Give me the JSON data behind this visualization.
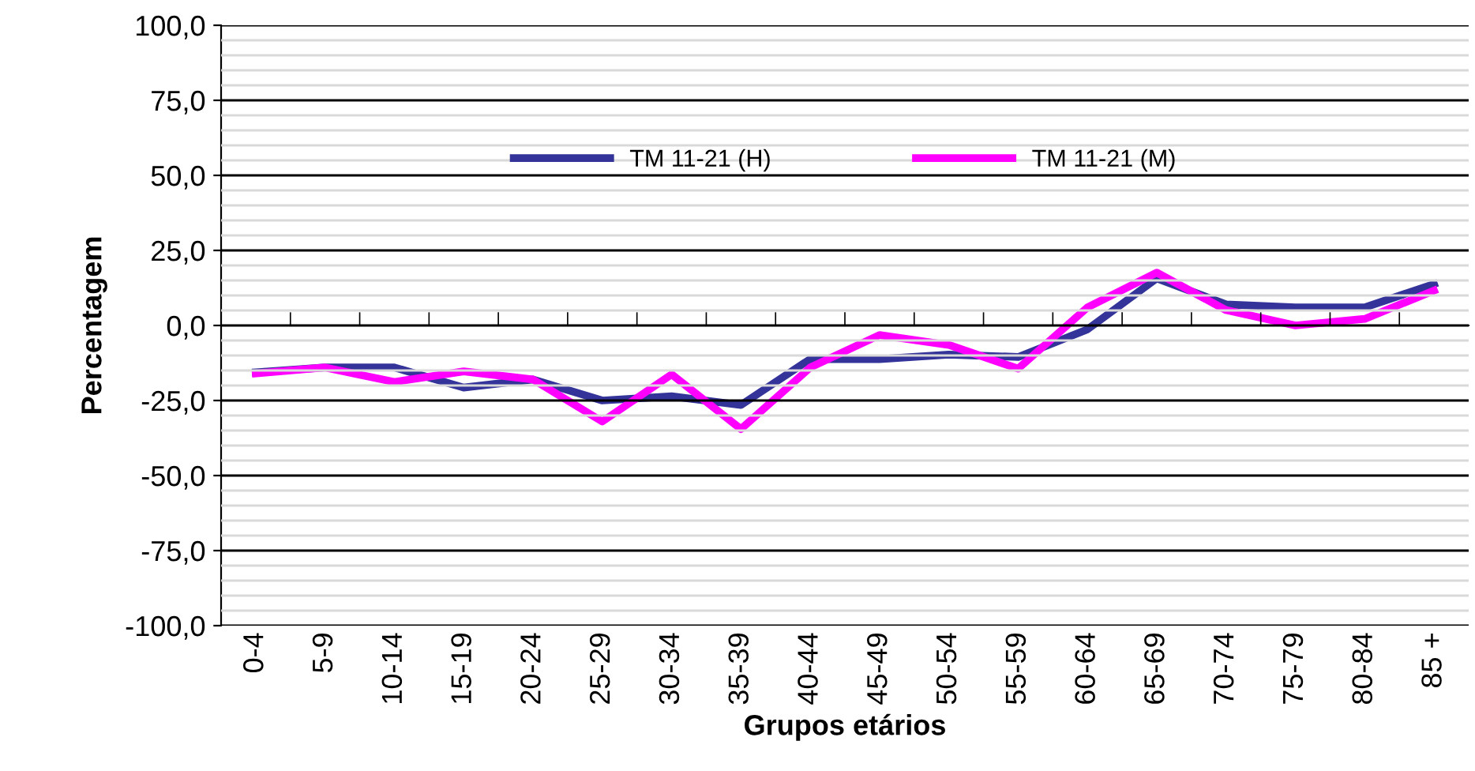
{
  "chart_data": {
    "type": "line",
    "xlabel": "Grupos etários",
    "ylabel": "Percentagem",
    "categories": [
      "0-4",
      "5-9",
      "10-14",
      "15-19",
      "20-24",
      "25-29",
      "30-34",
      "35-39",
      "40-44",
      "45-49",
      "50-54",
      "55-59",
      "60-64",
      "65-69",
      "70-74",
      "75-79",
      "80-84",
      "85 +"
    ],
    "series": [
      {
        "name": "TM 11-21 (H)",
        "color": "#333399",
        "values": [
          -15.6,
          -14,
          -14,
          -20.7,
          -18,
          -25,
          -23.6,
          -26.5,
          -11.2,
          -11.2,
          -9.7,
          -10.5,
          -1.3,
          15.7,
          7,
          6,
          6,
          13.8
        ]
      },
      {
        "name": "TM 11-21 (M)",
        "color": "#ff00ff",
        "values": [
          -16,
          -14,
          -18.8,
          -15.3,
          -18,
          -32,
          -16.3,
          -34.5,
          -14,
          -3.2,
          -6.5,
          -14.4,
          6,
          17.6,
          5.1,
          0,
          2.2,
          11.6
        ]
      }
    ],
    "ylim": [
      -100,
      100
    ],
    "yticks": [
      {
        "value": -100,
        "label": "-100,0"
      },
      {
        "value": -75,
        "label": "-75,0"
      },
      {
        "value": -50,
        "label": "-50,0"
      },
      {
        "value": -25,
        "label": "-25,0"
      },
      {
        "value": 0,
        "label": "0,0"
      },
      {
        "value": 25,
        "label": "25,0"
      },
      {
        "value": 50,
        "label": "50,0"
      },
      {
        "value": 75,
        "label": "75,0"
      },
      {
        "value": 100,
        "label": "100,0"
      }
    ],
    "grid": "y",
    "legend": "top",
    "marker": "none",
    "line_style": "solid"
  }
}
